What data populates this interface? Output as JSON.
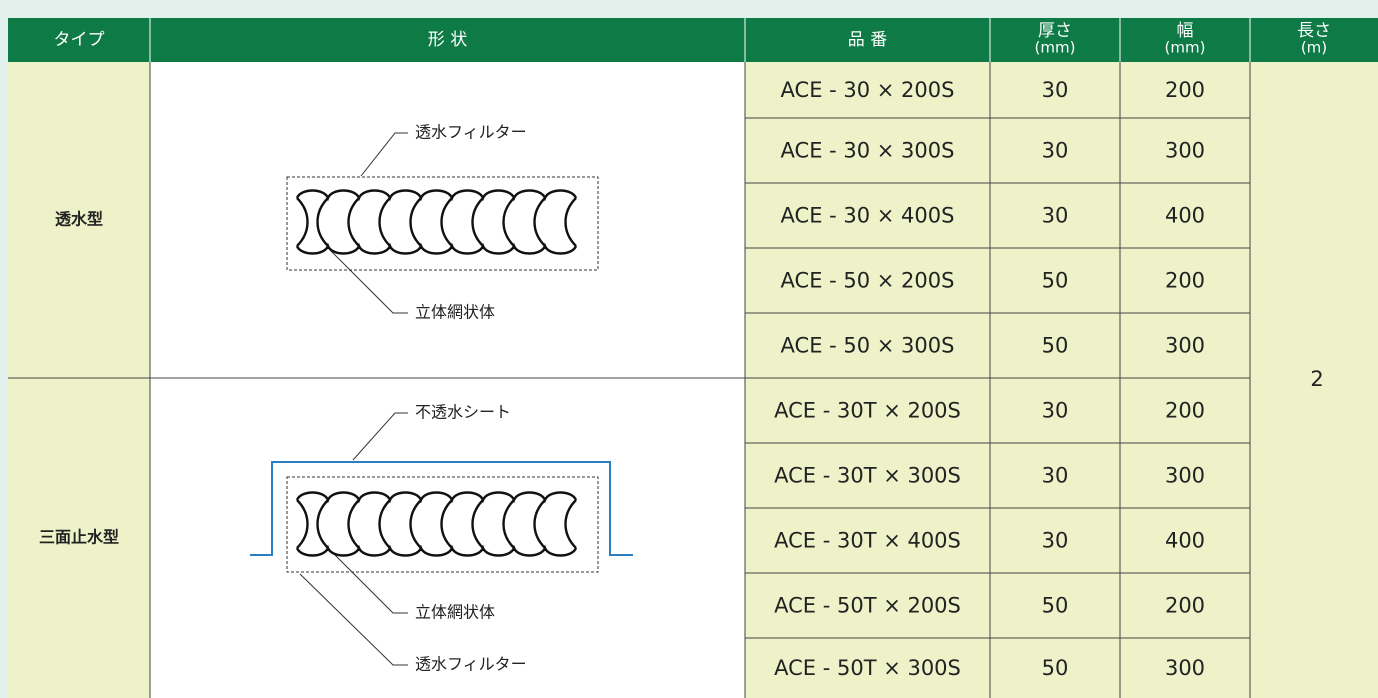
{
  "columns": [
    {
      "label": "タイプ"
    },
    {
      "label": "形 状"
    },
    {
      "label": "品 番"
    },
    {
      "label": "厚さ",
      "unit": "(mm)"
    },
    {
      "label": "幅",
      "unit": "(mm)"
    },
    {
      "label": "長さ",
      "unit": "(m)"
    }
  ],
  "groups": [
    {
      "type": "透水型",
      "labels": [
        "透水フィルター",
        "立体網状体"
      ],
      "rows": [
        [
          "ACE - 30 × 200S",
          30,
          200
        ],
        [
          "ACE - 30 × 300S",
          30,
          300
        ],
        [
          "ACE - 30 × 400S",
          30,
          400
        ],
        [
          "ACE - 50 × 200S",
          50,
          200
        ],
        [
          "ACE - 50 × 300S",
          50,
          300
        ]
      ]
    },
    {
      "type": "三面止水型",
      "labels": [
        "不透水シート",
        "立体網状体",
        "透水フィルター"
      ],
      "rows": [
        [
          "ACE - 30T × 200S",
          30,
          200
        ],
        [
          "ACE - 30T × 300S",
          30,
          300
        ],
        [
          "ACE - 30T × 400S",
          30,
          400
        ],
        [
          "ACE - 50T × 200S",
          50,
          200
        ],
        [
          "ACE - 50T × 300S",
          50,
          300
        ]
      ]
    }
  ],
  "length": 2
}
